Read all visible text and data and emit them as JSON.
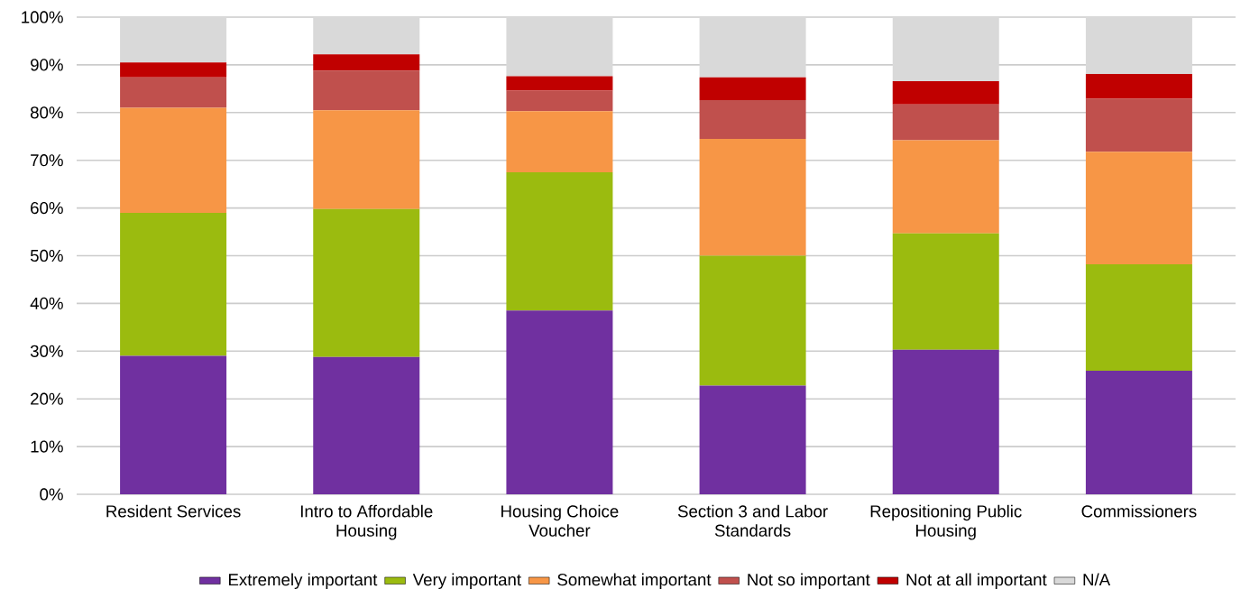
{
  "chart_data": {
    "type": "bar",
    "stacked": true,
    "grid": "y",
    "legend": "bottom",
    "categories": [
      "Resident Services",
      "Intro to Affordable Housing",
      "Housing Choice Voucher",
      "Section 3 and Labor Standards",
      "Repositioning Public Housing",
      "Commissioners"
    ],
    "ylim": [
      0,
      100
    ],
    "yticks": [
      {
        "value": 0,
        "label": "0%"
      },
      {
        "value": 10,
        "label": "10%"
      },
      {
        "value": 20,
        "label": "20%"
      },
      {
        "value": 30,
        "label": "30%"
      },
      {
        "value": 40,
        "label": "40%"
      },
      {
        "value": 50,
        "label": "50%"
      },
      {
        "value": 60,
        "label": "60%"
      },
      {
        "value": 70,
        "label": "70%"
      },
      {
        "value": 80,
        "label": "80%"
      },
      {
        "value": 90,
        "label": "90%"
      },
      {
        "value": 100,
        "label": "100%"
      }
    ],
    "series": [
      {
        "name": "Extremely important",
        "color": "#7030a0",
        "values": [
          29,
          28.8,
          38.5,
          22.8,
          30.3,
          25.9
        ]
      },
      {
        "name": "Very important",
        "color": "#9bbb0f",
        "values": [
          30,
          31,
          29,
          27.2,
          24.4,
          22.3
        ]
      },
      {
        "name": "Somewhat important",
        "color": "#f79646",
        "values": [
          22,
          20.7,
          12.8,
          24.5,
          19.5,
          23.6
        ]
      },
      {
        "name": "Not so important",
        "color": "#c0504d",
        "values": [
          6.4,
          8.3,
          4.3,
          8.1,
          7.5,
          11.1
        ]
      },
      {
        "name": "Not at all important",
        "color": "#c00000",
        "values": [
          3.1,
          3.4,
          3,
          4.8,
          4.9,
          5.2
        ]
      },
      {
        "name": "N/A",
        "color": "#d9d9d9",
        "values": [
          9.5,
          7.8,
          12.4,
          12.6,
          13.4,
          11.9
        ]
      }
    ]
  }
}
